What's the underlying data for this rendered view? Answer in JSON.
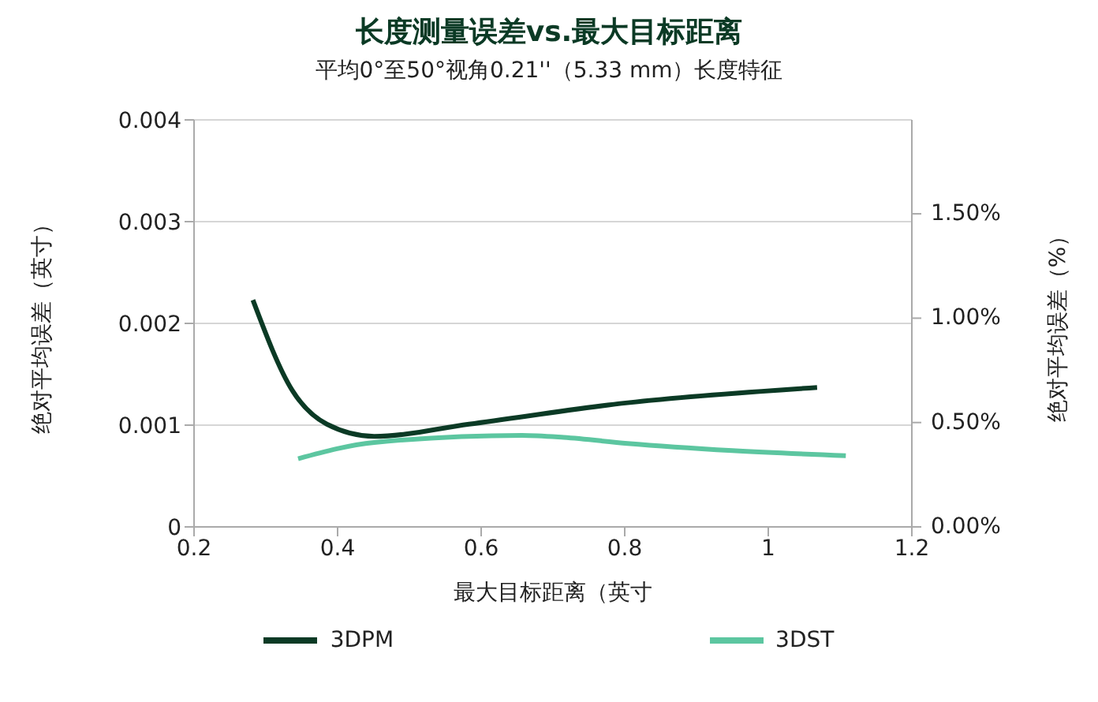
{
  "chart_data": {
    "type": "line",
    "title": "长度测量误差vs.最大目标距离",
    "subtitle": "平均0°至50°视角0.21''（5.33 mm）长度特征",
    "xlabel": "最大目标距离（英寸",
    "ylabel": "绝对平均误差（英寸）",
    "y2label": "绝对平均误差（%）",
    "series": [
      {
        "name": "3DPM",
        "color": "#0b3a25",
        "x": [
          0.282,
          0.337,
          0.385,
          0.451,
          0.583,
          0.804,
          1.068
        ],
        "values": [
          0.00223,
          0.00134,
          0.00101,
          0.00089,
          0.00101,
          0.00122,
          0.00137
        ]
      },
      {
        "name": "3DST",
        "color": "#5cc6a0",
        "x": [
          0.345,
          0.451,
          0.657,
          0.715,
          0.804,
          0.95,
          1.108
        ],
        "values": [
          0.00067,
          0.00083,
          0.0009,
          0.00088,
          0.00082,
          0.00075,
          0.0007
        ]
      }
    ],
    "xlim": [
      0.2,
      1.2
    ],
    "xticks": [
      0.2,
      0.4,
      0.6,
      0.8,
      1,
      1.2
    ],
    "ylim": [
      0,
      0.004
    ],
    "yticks": [
      0,
      0.001,
      0.002,
      0.003,
      0.004
    ],
    "y2lim": [
      0,
      1.95
    ],
    "y2ticks": [
      {
        "value": 0,
        "label": "0.00%"
      },
      {
        "value": 0.5,
        "label": "0.50%"
      },
      {
        "value": 1,
        "label": "1.00%"
      },
      {
        "value": 1.5,
        "label": "1.50%"
      }
    ],
    "grid": "y",
    "legend": "bottom",
    "marker": "none",
    "line_style": "solid"
  }
}
